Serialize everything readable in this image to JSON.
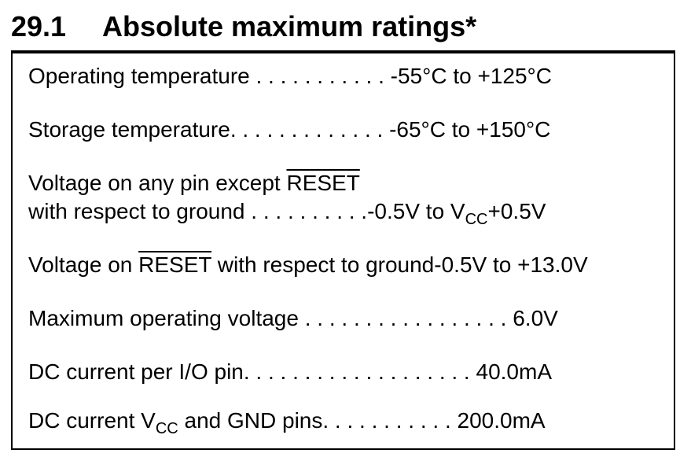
{
  "heading": {
    "number": "29.1",
    "title": "Absolute maximum ratings*"
  },
  "ratings": {
    "operating_temperature": {
      "label": "Operating temperature",
      "dots": " . . . . . . . . . . . ",
      "value": "-55°C to +125°C"
    },
    "storage_temperature": {
      "label": "Storage temperature",
      "dots": ". . . . . . . . . . . . . ",
      "value": "-65°C to +150°C"
    },
    "voltage_any_pin": {
      "label_prefix": "Voltage on any pin except ",
      "label_overline": "RESET",
      "label_line2": "with respect to ground",
      "dots": " . . . . . . . . . .",
      "value_prefix": "-0.5V to V",
      "value_sub": "CC",
      "value_suffix": "+0.5V"
    },
    "voltage_on_reset": {
      "label_prefix": "Voltage on ",
      "label_overline": "RESET",
      "label_suffix": " with respect to ground",
      "value": "-0.5V to +13.0V"
    },
    "max_operating_voltage": {
      "label": "Maximum operating voltage",
      "dots": " . . . . . . . . . . . . . . . . . ",
      "value": "6.0V"
    },
    "dc_current_io": {
      "label": "DC current per I/O pin",
      "dots": ". . . . . . . . . . . . . . . . . . .  ",
      "value": "40.0mA"
    },
    "dc_current_vcc_gnd": {
      "label_prefix": "DC current V",
      "label_sub": "CC",
      "label_suffix": " and GND pins",
      "dots": ". . . . . . . . . . .  ",
      "value": "200.0mA"
    }
  }
}
